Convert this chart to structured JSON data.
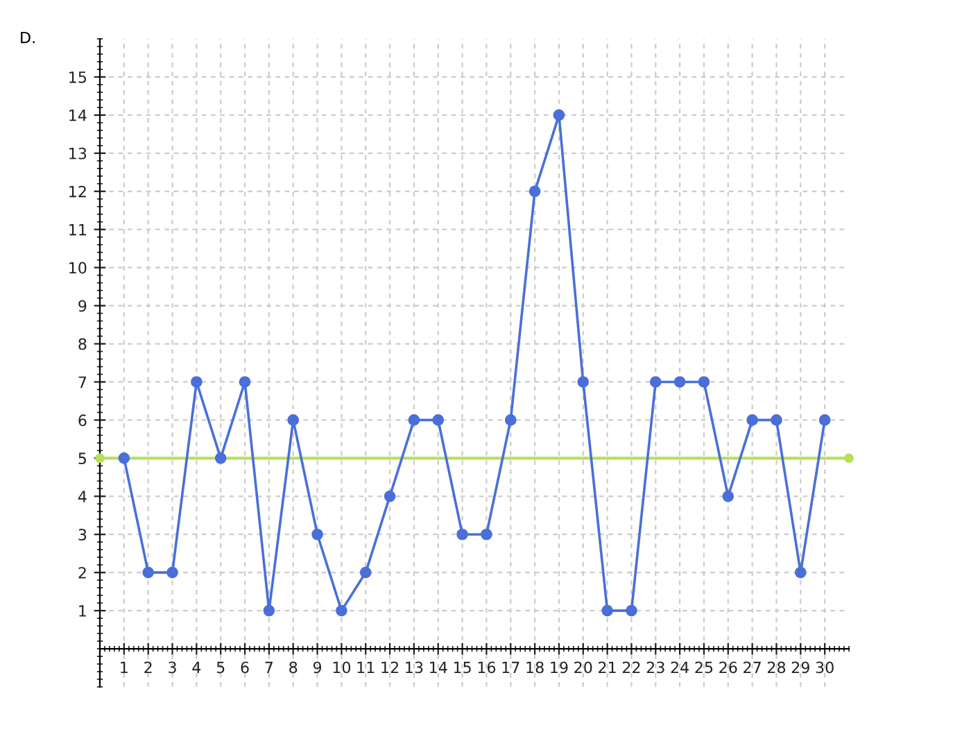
{
  "chart_data": {
    "type": "line",
    "title": "D.",
    "x": [
      1,
      2,
      3,
      4,
      5,
      6,
      7,
      8,
      9,
      10,
      11,
      12,
      13,
      14,
      15,
      16,
      17,
      18,
      19,
      20,
      21,
      22,
      23,
      24,
      25,
      26,
      27,
      28,
      29,
      30
    ],
    "series": [
      {
        "type": "scatter",
        "color": "#b5e05a",
        "x": [
          0,
          31
        ],
        "values": [
          5,
          5
        ]
      },
      {
        "color": "#4a6fd8",
        "values": [
          5,
          2,
          2,
          7,
          5,
          7,
          1,
          6,
          3,
          1,
          2,
          4,
          6,
          6,
          3,
          3,
          6,
          12,
          14,
          7,
          1,
          1,
          7,
          7,
          7,
          4,
          6,
          6,
          2,
          6
        ]
      }
    ],
    "xlim": [
      0,
      31
    ],
    "ylim": [
      -1,
      16
    ],
    "xticks": [
      1,
      2,
      3,
      4,
      5,
      6,
      7,
      8,
      9,
      10,
      11,
      12,
      13,
      14,
      15,
      16,
      17,
      18,
      19,
      20,
      21,
      22,
      23,
      24,
      25,
      26,
      27,
      28,
      29,
      30
    ],
    "yticks": [
      1,
      2,
      3,
      4,
      5,
      6,
      7,
      8,
      9,
      10,
      11,
      12,
      13,
      14,
      15
    ],
    "ref_lines": [
      {
        "axis": "y",
        "value": 5,
        "color": "#b5e05a"
      }
    ],
    "grid": true,
    "marker": "circle",
    "line_style": "solid"
  }
}
